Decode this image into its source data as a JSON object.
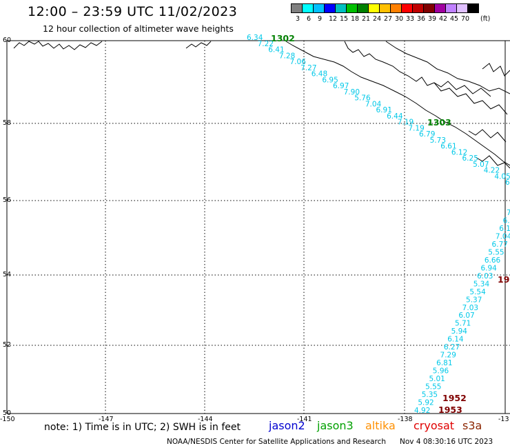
{
  "header": {
    "title": "12:00 – 23:59 UTC 11/02/2023",
    "subtitle": "12 hour collection of altimeter wave heights"
  },
  "colorbar": {
    "colors": [
      "#808080",
      "#00ffff",
      "#00c0ff",
      "#0000ff",
      "#00c0c0",
      "#00c000",
      "#008000",
      "#ffff00",
      "#ffc000",
      "#ff8000",
      "#ff0000",
      "#c00000",
      "#800000",
      "#a000a0",
      "#c080ff",
      "#e0c0ff",
      "#000000"
    ],
    "ticks": [
      "3",
      "6",
      "9",
      "12",
      "15",
      "18",
      "21",
      "24",
      "27",
      "30",
      "33",
      "36",
      "39",
      "42",
      "45",
      "70"
    ],
    "unit": "(ft)"
  },
  "map": {
    "lat_labels": [
      "60",
      "58",
      "56",
      "54",
      "52",
      "50"
    ],
    "lon_labels": [
      "-150",
      "-147",
      "-144",
      "-141",
      "-138",
      "-13"
    ],
    "track_color": "#00c8e8",
    "pass_color_jason3": "#008000",
    "pass_color_cryosat": "#800000",
    "track_alaska": [
      "6.34",
      "7.22",
      "6.41",
      "7.28",
      "7.06",
      "7.27",
      "6.48",
      "6.95",
      "6.97",
      "7.90",
      "5.76",
      "7.04",
      "6.91",
      "6.44",
      "7.19",
      "7.19",
      "6.79",
      "5.73",
      "6.61",
      "6.12",
      "6.25",
      "5.07",
      "4.22",
      "4.05",
      "6.1"
    ],
    "track_south": [
      "7",
      "6.",
      "6.1",
      "7.04",
      "6.77",
      "5.55",
      "6.66",
      "6.94",
      "6.03",
      "5.34",
      "5.54",
      "5.37",
      "7.03",
      "6.07",
      "5.71",
      "5.94",
      "6.14",
      "6.27",
      "7.29",
      "6.81",
      "5.96",
      "5.01",
      "5.55",
      "5.35",
      "5.92",
      "4.92"
    ],
    "pass_labels": [
      "1302",
      "1303",
      "19",
      "1952",
      "1953"
    ]
  },
  "footer": {
    "note": "note: 1) Time is in UTC; 2) SWH is in feet",
    "satellites": [
      {
        "name": "jason2",
        "color": "#0000d0"
      },
      {
        "name": "jason3",
        "color": "#00a000"
      },
      {
        "name": "altika",
        "color": "#ff9000"
      },
      {
        "name": "cryosat",
        "color": "#e00000"
      },
      {
        "name": "s3a",
        "color": "#8b2500"
      }
    ],
    "credit": "NOAA/NESDIS Center for Satellite Applications and Research",
    "timestamp": "Nov  4 08:30:16 UTC 2023"
  }
}
